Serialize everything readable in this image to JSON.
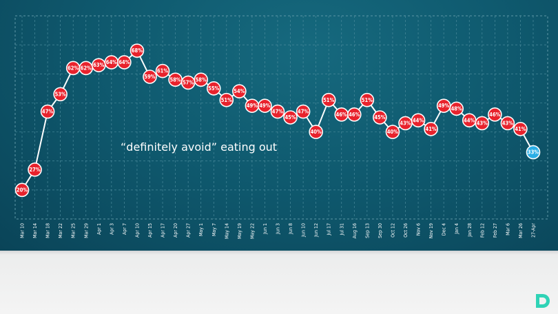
{
  "chart_data": {
    "type": "line",
    "annotation": "“definitely avoid” eating out",
    "ylim": [
      10,
      80
    ],
    "grid": true,
    "line_color": "#ffffff",
    "marker_color": "#e8222c",
    "last_marker_color": "#2aaee6",
    "x": [
      "Mar 10",
      "Mar 14",
      "Mar 18",
      "Mar 22",
      "Mar 25",
      "Mar 29",
      "Apr 1",
      "Apr 3",
      "Apr 7",
      "Apr 10",
      "Apr 15",
      "Apr 17",
      "Apr 20",
      "Apr 27",
      "May 1",
      "May 7",
      "May 14",
      "May 19",
      "May 22",
      "Jun 1",
      "Jun 3",
      "Jun 8",
      "Jun 10",
      "Jun 12",
      "Jul 17",
      "Jul 31",
      "Aug 16",
      "Sep 13",
      "Sep 30",
      "Oct 12",
      "Oct 26",
      "Nov 6",
      "Nov 19",
      "Dec 4",
      "Jan 4",
      "Jan 28",
      "Feb 12",
      "Feb 27",
      "Mar 6",
      "Mar 26",
      "27-Apr"
    ],
    "values": [
      20,
      27,
      47,
      53,
      62,
      62,
      63,
      64,
      64,
      68,
      59,
      61,
      58,
      57,
      58,
      55,
      51,
      54,
      49,
      49,
      47,
      45,
      47,
      40,
      51,
      46,
      46,
      51,
      45,
      40,
      43,
      44,
      41,
      49,
      48,
      44,
      43,
      46,
      43,
      41,
      33
    ],
    "labels": [
      "20%",
      "27%",
      "47%",
      "53%",
      "62%",
      "62%",
      "63%",
      "64%",
      "64%",
      "68%",
      "59%",
      "61%",
      "58%",
      "57%",
      "58%",
      "55%",
      "51%",
      "54%",
      "49%",
      "49%",
      "47%",
      "45%",
      "47%",
      "40%",
      "51%",
      "46%",
      "46%",
      "51%",
      "45%",
      "40%",
      "43%",
      "44%",
      "41%",
      "49%",
      "48%",
      "44%",
      "43%",
      "46%",
      "43%",
      "41%",
      "33%"
    ]
  },
  "logo": {
    "name": "D",
    "color": "#2fd3b6"
  }
}
